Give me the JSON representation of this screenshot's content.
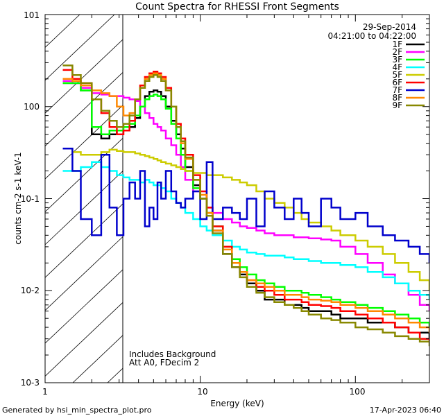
{
  "chart_data": {
    "type": "line",
    "title": "Count Spectra for RHESSI Front Segments",
    "xlabel": "Energy (keV)",
    "ylabel": "counts cm-2 s-1 keV-1",
    "xscale": "log",
    "yscale": "log",
    "xlim": [
      1,
      300
    ],
    "ylim": [
      0.001,
      10
    ],
    "x_ticks": [
      "1",
      "10",
      "100"
    ],
    "y_ticks": [
      "10-3",
      "10-2",
      "10-1",
      "100",
      "101"
    ],
    "date": "29-Sep-2014",
    "time_range": "04:21:00 to 04:22:00",
    "annotation_1": "Includes Background",
    "annotation_2": "Att A0, FDecim 2",
    "footer_left": "Generated by hsi_min_spectra_plot.pro",
    "footer_right": "17-Apr-2023 06:40",
    "excluded_region_below_keV": 3,
    "x": [
      1.3,
      1.5,
      1.7,
      2.0,
      2.3,
      2.6,
      2.9,
      3.2,
      3.5,
      3.8,
      4.1,
      4.4,
      4.7,
      5.0,
      5.3,
      5.6,
      6.0,
      6.5,
      7.0,
      7.5,
      8.0,
      9.0,
      10,
      11,
      12,
      14,
      16,
      18,
      20,
      23,
      26,
      30,
      35,
      40,
      45,
      50,
      60,
      70,
      80,
      100,
      120,
      150,
      180,
      220,
      260,
      300
    ],
    "series": [
      {
        "name": "1F",
        "color": "#000000",
        "values": [
          1.8,
          1.8,
          1.5,
          0.5,
          0.45,
          0.5,
          0.55,
          0.55,
          0.6,
          0.75,
          1.0,
          1.3,
          1.45,
          1.5,
          1.45,
          1.3,
          1.0,
          0.7,
          0.5,
          0.35,
          0.22,
          0.14,
          0.1,
          0.07,
          0.045,
          0.025,
          0.018,
          0.015,
          0.012,
          0.01,
          0.008,
          0.008,
          0.007,
          0.007,
          0.0065,
          0.006,
          0.006,
          0.0055,
          0.005,
          0.005,
          0.0045,
          0.0045,
          0.004,
          0.0035,
          0.0035,
          0.003
        ]
      },
      {
        "name": "2F",
        "color": "#ff00ff",
        "values": [
          1.9,
          1.8,
          1.6,
          1.4,
          1.35,
          1.3,
          1.3,
          1.25,
          1.2,
          1.15,
          1.0,
          0.85,
          0.75,
          0.65,
          0.6,
          0.55,
          0.45,
          0.38,
          0.3,
          0.22,
          0.16,
          0.12,
          0.1,
          0.08,
          0.07,
          0.06,
          0.055,
          0.05,
          0.048,
          0.045,
          0.042,
          0.04,
          0.04,
          0.038,
          0.038,
          0.037,
          0.036,
          0.035,
          0.03,
          0.025,
          0.02,
          0.015,
          0.012,
          0.009,
          0.007,
          0.006
        ]
      },
      {
        "name": "3F",
        "color": "#00ff00",
        "values": [
          1.8,
          1.8,
          1.5,
          0.6,
          0.5,
          0.55,
          0.55,
          0.6,
          0.65,
          0.8,
          1.0,
          1.2,
          1.3,
          1.35,
          1.3,
          1.2,
          0.95,
          0.65,
          0.45,
          0.3,
          0.2,
          0.13,
          0.1,
          0.07,
          0.05,
          0.03,
          0.022,
          0.018,
          0.015,
          0.013,
          0.012,
          0.011,
          0.01,
          0.01,
          0.0095,
          0.009,
          0.0085,
          0.008,
          0.0075,
          0.007,
          0.0065,
          0.006,
          0.0055,
          0.005,
          0.0045,
          0.004
        ]
      },
      {
        "name": "4F",
        "color": "#00ffff",
        "values": [
          0.2,
          0.2,
          0.22,
          0.25,
          0.22,
          0.2,
          0.18,
          0.17,
          0.16,
          0.16,
          0.15,
          0.16,
          0.15,
          0.14,
          0.14,
          0.13,
          0.12,
          0.1,
          0.09,
          0.08,
          0.07,
          0.06,
          0.05,
          0.045,
          0.04,
          0.035,
          0.03,
          0.028,
          0.026,
          0.025,
          0.024,
          0.024,
          0.023,
          0.022,
          0.022,
          0.021,
          0.02,
          0.02,
          0.019,
          0.018,
          0.016,
          0.014,
          0.012,
          0.01,
          0.009,
          0.008
        ]
      },
      {
        "name": "5F",
        "color": "#cccc00",
        "values": [
          0.35,
          0.32,
          0.3,
          0.3,
          0.32,
          0.34,
          0.33,
          0.32,
          0.32,
          0.31,
          0.3,
          0.29,
          0.28,
          0.27,
          0.26,
          0.25,
          0.24,
          0.23,
          0.22,
          0.21,
          0.2,
          0.19,
          0.19,
          0.18,
          0.18,
          0.17,
          0.16,
          0.15,
          0.14,
          0.12,
          0.1,
          0.09,
          0.08,
          0.07,
          0.06,
          0.055,
          0.05,
          0.045,
          0.04,
          0.035,
          0.03,
          0.025,
          0.02,
          0.016,
          0.013,
          0.01
        ]
      },
      {
        "name": "6F",
        "color": "#ff0000",
        "values": [
          2.5,
          2.0,
          1.8,
          1.2,
          0.85,
          0.6,
          0.5,
          0.55,
          0.7,
          1.2,
          1.7,
          2.1,
          2.3,
          2.4,
          2.3,
          2.1,
          1.6,
          1.0,
          0.65,
          0.45,
          0.3,
          0.18,
          0.12,
          0.08,
          0.05,
          0.03,
          0.02,
          0.016,
          0.013,
          0.011,
          0.01,
          0.009,
          0.008,
          0.008,
          0.0075,
          0.007,
          0.0068,
          0.0065,
          0.006,
          0.0055,
          0.005,
          0.0045,
          0.004,
          0.0035,
          0.003,
          0.0028
        ]
      },
      {
        "name": "7F",
        "color": "#0000cc",
        "values": [
          0.35,
          0.2,
          0.06,
          0.04,
          0.3,
          0.08,
          0.04,
          0.1,
          0.15,
          0.1,
          0.2,
          0.05,
          0.08,
          0.06,
          0.15,
          0.1,
          0.2,
          0.12,
          0.09,
          0.08,
          0.1,
          0.12,
          0.06,
          0.25,
          0.06,
          0.08,
          0.07,
          0.06,
          0.1,
          0.05,
          0.12,
          0.08,
          0.06,
          0.1,
          0.07,
          0.05,
          0.1,
          0.08,
          0.06,
          0.07,
          0.05,
          0.04,
          0.035,
          0.03,
          0.025,
          0.02
        ]
      },
      {
        "name": "8F",
        "color": "#ff8800",
        "values": [
          2.0,
          1.9,
          1.7,
          1.5,
          1.4,
          1.3,
          1.0,
          0.8,
          0.85,
          1.2,
          1.6,
          2.0,
          2.2,
          2.3,
          2.2,
          2.0,
          1.5,
          1.0,
          0.6,
          0.4,
          0.27,
          0.16,
          0.11,
          0.07,
          0.045,
          0.028,
          0.02,
          0.016,
          0.013,
          0.012,
          0.011,
          0.01,
          0.009,
          0.009,
          0.0085,
          0.008,
          0.0078,
          0.0075,
          0.007,
          0.0065,
          0.006,
          0.0055,
          0.005,
          0.0045,
          0.004,
          0.0035
        ]
      },
      {
        "name": "9F",
        "color": "#888800",
        "values": [
          2.8,
          2.2,
          1.8,
          1.2,
          0.9,
          0.7,
          0.6,
          0.65,
          0.8,
          1.2,
          1.6,
          1.9,
          2.1,
          2.2,
          2.1,
          1.9,
          1.5,
          1.0,
          0.6,
          0.42,
          0.28,
          0.16,
          0.1,
          0.065,
          0.042,
          0.025,
          0.018,
          0.014,
          0.011,
          0.0095,
          0.0085,
          0.0075,
          0.007,
          0.0065,
          0.006,
          0.0055,
          0.005,
          0.0048,
          0.0045,
          0.004,
          0.0038,
          0.0035,
          0.0032,
          0.003,
          0.0028,
          0.0025
        ]
      }
    ]
  }
}
